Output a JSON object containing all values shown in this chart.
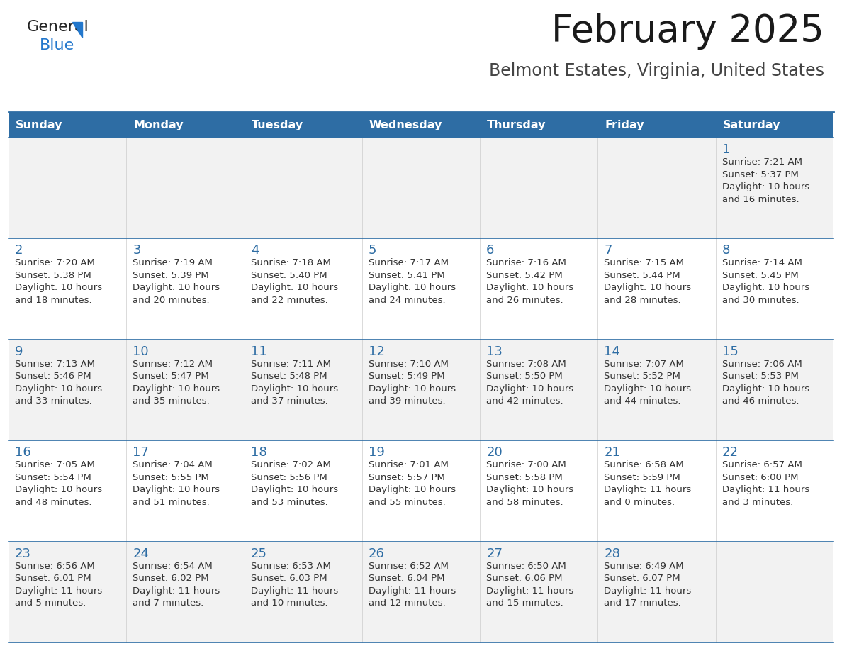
{
  "title": "February 2025",
  "subtitle": "Belmont Estates, Virginia, United States",
  "header_bg": "#2e6da4",
  "header_text": "#ffffff",
  "day_headers": [
    "Sunday",
    "Monday",
    "Tuesday",
    "Wednesday",
    "Thursday",
    "Friday",
    "Saturday"
  ],
  "row_bg_odd": "#f2f2f2",
  "row_bg_even": "#ffffff",
  "grid_line_color": "#2e6da4",
  "day_number_color": "#2e6da4",
  "text_color": "#333333",
  "weeks": [
    {
      "days": [
        {
          "date": null,
          "sunrise": null,
          "sunset": null,
          "daylight1": null,
          "daylight2": null
        },
        {
          "date": null,
          "sunrise": null,
          "sunset": null,
          "daylight1": null,
          "daylight2": null
        },
        {
          "date": null,
          "sunrise": null,
          "sunset": null,
          "daylight1": null,
          "daylight2": null
        },
        {
          "date": null,
          "sunrise": null,
          "sunset": null,
          "daylight1": null,
          "daylight2": null
        },
        {
          "date": null,
          "sunrise": null,
          "sunset": null,
          "daylight1": null,
          "daylight2": null
        },
        {
          "date": null,
          "sunrise": null,
          "sunset": null,
          "daylight1": null,
          "daylight2": null
        },
        {
          "date": 1,
          "sunrise": "7:21 AM",
          "sunset": "5:37 PM",
          "daylight1": "10 hours",
          "daylight2": "and 16 minutes."
        }
      ]
    },
    {
      "days": [
        {
          "date": 2,
          "sunrise": "7:20 AM",
          "sunset": "5:38 PM",
          "daylight1": "10 hours",
          "daylight2": "and 18 minutes."
        },
        {
          "date": 3,
          "sunrise": "7:19 AM",
          "sunset": "5:39 PM",
          "daylight1": "10 hours",
          "daylight2": "and 20 minutes."
        },
        {
          "date": 4,
          "sunrise": "7:18 AM",
          "sunset": "5:40 PM",
          "daylight1": "10 hours",
          "daylight2": "and 22 minutes."
        },
        {
          "date": 5,
          "sunrise": "7:17 AM",
          "sunset": "5:41 PM",
          "daylight1": "10 hours",
          "daylight2": "and 24 minutes."
        },
        {
          "date": 6,
          "sunrise": "7:16 AM",
          "sunset": "5:42 PM",
          "daylight1": "10 hours",
          "daylight2": "and 26 minutes."
        },
        {
          "date": 7,
          "sunrise": "7:15 AM",
          "sunset": "5:44 PM",
          "daylight1": "10 hours",
          "daylight2": "and 28 minutes."
        },
        {
          "date": 8,
          "sunrise": "7:14 AM",
          "sunset": "5:45 PM",
          "daylight1": "10 hours",
          "daylight2": "and 30 minutes."
        }
      ]
    },
    {
      "days": [
        {
          "date": 9,
          "sunrise": "7:13 AM",
          "sunset": "5:46 PM",
          "daylight1": "10 hours",
          "daylight2": "and 33 minutes."
        },
        {
          "date": 10,
          "sunrise": "7:12 AM",
          "sunset": "5:47 PM",
          "daylight1": "10 hours",
          "daylight2": "and 35 minutes."
        },
        {
          "date": 11,
          "sunrise": "7:11 AM",
          "sunset": "5:48 PM",
          "daylight1": "10 hours",
          "daylight2": "and 37 minutes."
        },
        {
          "date": 12,
          "sunrise": "7:10 AM",
          "sunset": "5:49 PM",
          "daylight1": "10 hours",
          "daylight2": "and 39 minutes."
        },
        {
          "date": 13,
          "sunrise": "7:08 AM",
          "sunset": "5:50 PM",
          "daylight1": "10 hours",
          "daylight2": "and 42 minutes."
        },
        {
          "date": 14,
          "sunrise": "7:07 AM",
          "sunset": "5:52 PM",
          "daylight1": "10 hours",
          "daylight2": "and 44 minutes."
        },
        {
          "date": 15,
          "sunrise": "7:06 AM",
          "sunset": "5:53 PM",
          "daylight1": "10 hours",
          "daylight2": "and 46 minutes."
        }
      ]
    },
    {
      "days": [
        {
          "date": 16,
          "sunrise": "7:05 AM",
          "sunset": "5:54 PM",
          "daylight1": "10 hours",
          "daylight2": "and 48 minutes."
        },
        {
          "date": 17,
          "sunrise": "7:04 AM",
          "sunset": "5:55 PM",
          "daylight1": "10 hours",
          "daylight2": "and 51 minutes."
        },
        {
          "date": 18,
          "sunrise": "7:02 AM",
          "sunset": "5:56 PM",
          "daylight1": "10 hours",
          "daylight2": "and 53 minutes."
        },
        {
          "date": 19,
          "sunrise": "7:01 AM",
          "sunset": "5:57 PM",
          "daylight1": "10 hours",
          "daylight2": "and 55 minutes."
        },
        {
          "date": 20,
          "sunrise": "7:00 AM",
          "sunset": "5:58 PM",
          "daylight1": "10 hours",
          "daylight2": "and 58 minutes."
        },
        {
          "date": 21,
          "sunrise": "6:58 AM",
          "sunset": "5:59 PM",
          "daylight1": "11 hours",
          "daylight2": "and 0 minutes."
        },
        {
          "date": 22,
          "sunrise": "6:57 AM",
          "sunset": "6:00 PM",
          "daylight1": "11 hours",
          "daylight2": "and 3 minutes."
        }
      ]
    },
    {
      "days": [
        {
          "date": 23,
          "sunrise": "6:56 AM",
          "sunset": "6:01 PM",
          "daylight1": "11 hours",
          "daylight2": "and 5 minutes."
        },
        {
          "date": 24,
          "sunrise": "6:54 AM",
          "sunset": "6:02 PM",
          "daylight1": "11 hours",
          "daylight2": "and 7 minutes."
        },
        {
          "date": 25,
          "sunrise": "6:53 AM",
          "sunset": "6:03 PM",
          "daylight1": "11 hours",
          "daylight2": "and 10 minutes."
        },
        {
          "date": 26,
          "sunrise": "6:52 AM",
          "sunset": "6:04 PM",
          "daylight1": "11 hours",
          "daylight2": "and 12 minutes."
        },
        {
          "date": 27,
          "sunrise": "6:50 AM",
          "sunset": "6:06 PM",
          "daylight1": "11 hours",
          "daylight2": "and 15 minutes."
        },
        {
          "date": 28,
          "sunrise": "6:49 AM",
          "sunset": "6:07 PM",
          "daylight1": "11 hours",
          "daylight2": "and 17 minutes."
        },
        {
          "date": null,
          "sunrise": null,
          "sunset": null,
          "daylight1": null,
          "daylight2": null
        }
      ]
    }
  ],
  "title_fontsize": 38,
  "subtitle_fontsize": 17,
  "header_fontsize": 11.5,
  "day_num_fontsize": 13,
  "cell_text_fontsize": 9.5
}
